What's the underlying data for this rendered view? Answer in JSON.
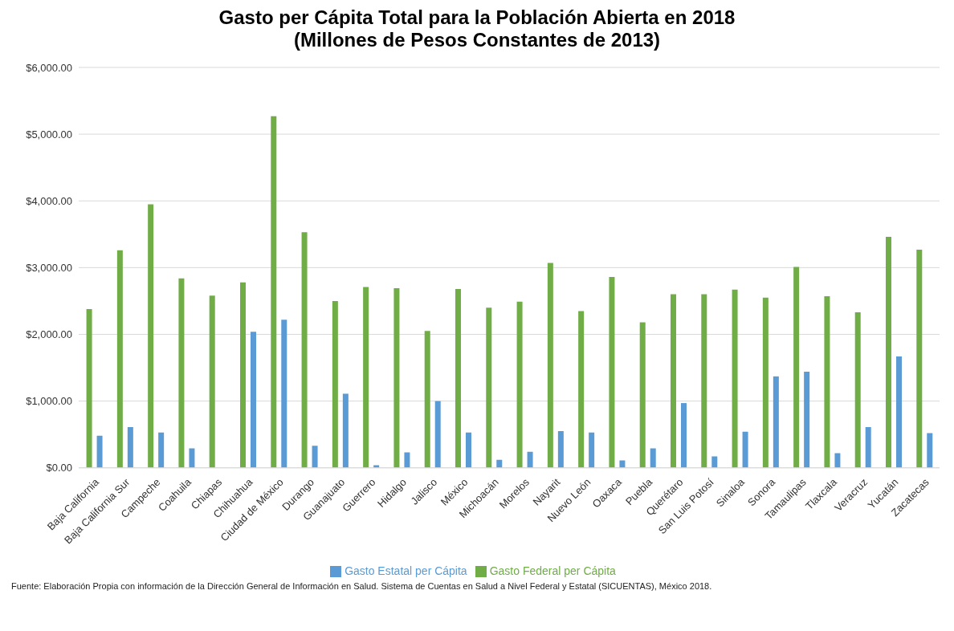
{
  "chart_data": {
    "type": "bar",
    "title": "Gasto per Cápita Total para la Población Abierta en 2018",
    "subtitle": "(Millones de Pesos Constantes de 2013)",
    "categories": [
      "Baja California",
      "Baja California Sur",
      "Campeche",
      "Coahuila",
      "Chiapas",
      "Chihuahua",
      "Ciudad de México",
      "Durango",
      "Guanajuato",
      "Guerrero",
      "Hidalgo",
      "Jalisco",
      "México",
      "Michoacán",
      "Morelos",
      "Nayarit",
      "Nuevo León",
      "Oaxaca",
      "Puebla",
      "Querétaro",
      "San Luis Potosí",
      "Sinaloa",
      "Sonora",
      "Tamaulipas",
      "Tlaxcala",
      "Veracruz",
      "Yucatán",
      "Zacatecas"
    ],
    "series": [
      {
        "name": "Gasto Federal per Cápita",
        "color": "#70ad47",
        "values": [
          2380,
          3260,
          3950,
          2840,
          2580,
          2780,
          5270,
          3530,
          2500,
          2710,
          2690,
          2050,
          2680,
          2400,
          2490,
          3070,
          2350,
          2860,
          2180,
          2600,
          2600,
          2670,
          2550,
          3010,
          2570,
          2330,
          3460,
          3270
        ]
      },
      {
        "name": "Gasto Estatal per Cápita",
        "color": "#5b9bd5",
        "values": [
          480,
          610,
          530,
          290,
          0,
          2040,
          2220,
          330,
          1110,
          40,
          230,
          1000,
          530,
          120,
          240,
          550,
          530,
          110,
          290,
          970,
          170,
          540,
          1370,
          1440,
          220,
          610,
          1670,
          520
        ]
      }
    ],
    "ylim": [
      0,
      6000
    ],
    "yticks": [
      {
        "value": 0,
        "label": "$0.00"
      },
      {
        "value": 1000,
        "label": "$1,000.00"
      },
      {
        "value": 2000,
        "label": "$2,000.00"
      },
      {
        "value": 3000,
        "label": "$3,000.00"
      },
      {
        "value": 4000,
        "label": "$4,000.00"
      },
      {
        "value": 5000,
        "label": "$5,000.00"
      },
      {
        "value": 6000,
        "label": "$6,000.00"
      }
    ],
    "grid": "y",
    "legend": "bottom",
    "annotations": [
      "Fuente: Elaboración Propia con información de la Dirección General de Información en Salud. Sistema de Cuentas en Salud a Nivel Federal y Estatal (SICUENTAS), México 2018."
    ]
  }
}
